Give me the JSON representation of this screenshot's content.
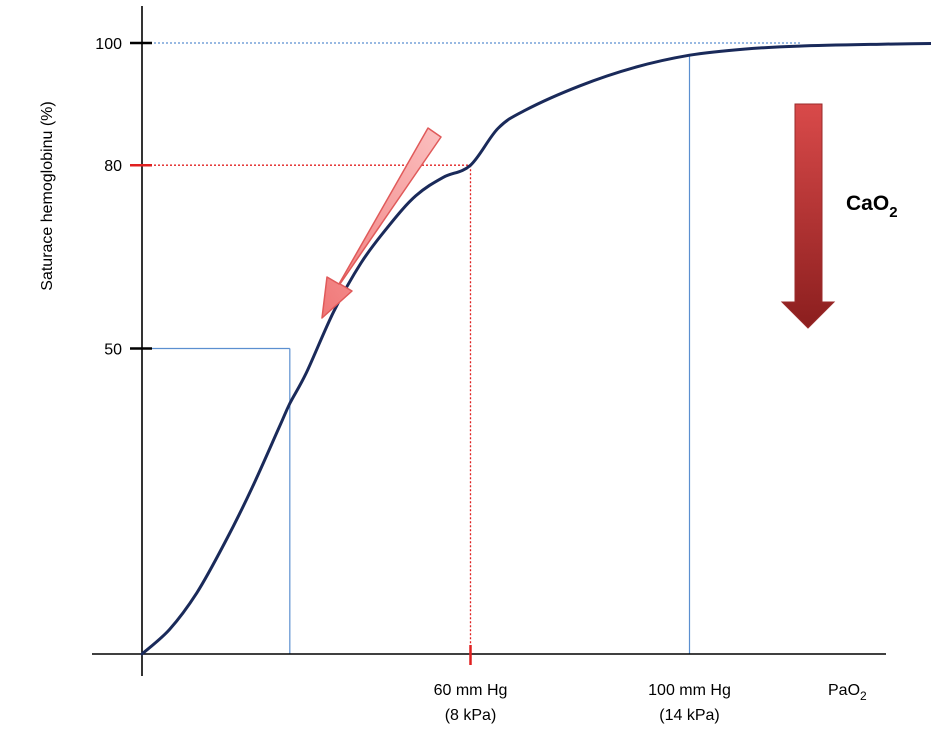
{
  "chart_data": {
    "type": "line",
    "title": "",
    "ylabel": "Saturace hemoglobinu (%)",
    "xlabel": "PaO",
    "xlabel_sub": "2",
    "ylim": [
      0,
      100
    ],
    "xlim": [
      0,
      150
    ],
    "grid": false,
    "yticks": [
      {
        "value": 100,
        "label": "100",
        "color": "#000000"
      },
      {
        "value": 80,
        "label": "80",
        "color": "#e02020"
      },
      {
        "value": 50,
        "label": "50",
        "color": "#000000"
      }
    ],
    "xticks": [
      {
        "value": 60,
        "line1": "60 mm Hg",
        "line2": "(8 kPa)",
        "color": "#e02020"
      },
      {
        "value": 100,
        "line1": "100 mm Hg",
        "line2": "(14 kPa)",
        "color": "#5b8fd0"
      }
    ],
    "series": [
      {
        "color": "#1a2a5a",
        "x": [
          0,
          5,
          10,
          15,
          20,
          25,
          27,
          30,
          35,
          40,
          45,
          50,
          55,
          60,
          65,
          70,
          80,
          90,
          100,
          110,
          120,
          135,
          150
        ],
        "y": [
          0,
          4,
          10,
          18,
          27,
          37,
          41,
          46,
          56,
          64,
          70,
          75,
          78,
          80,
          86,
          89,
          93,
          96,
          98,
          99,
          99.5,
          99.8,
          100
        ]
      }
    ],
    "reference_lines": [
      {
        "x": 27,
        "y": 50,
        "color": "#5b8fd0",
        "style": "solid"
      },
      {
        "x": 60,
        "y": 80,
        "color": "#e02020",
        "style": "dotted"
      },
      {
        "x": 100,
        "y": 98,
        "color": "#5b8fd0",
        "style": "solid",
        "horizontal_y": 100,
        "horizontal_style": "dotted"
      }
    ],
    "annotations": [
      {
        "name": "left-shift-arrow",
        "type": "arrow",
        "color": "#f08080",
        "direction": "down-left"
      },
      {
        "name": "cao2-arrow",
        "type": "arrow",
        "color": "#b03030",
        "direction": "down"
      },
      {
        "name": "cao2-label",
        "text": "CaO",
        "sub": "2"
      }
    ]
  }
}
